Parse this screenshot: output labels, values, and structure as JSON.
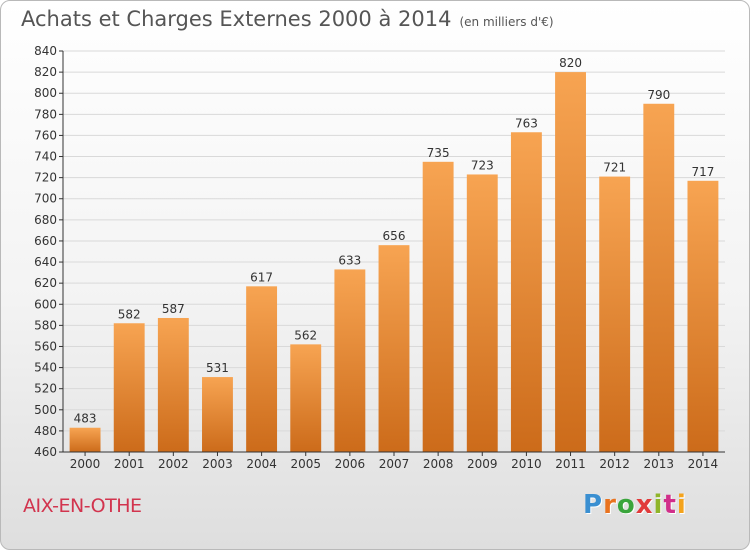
{
  "header": {
    "title": "Achats et Charges Externes 2000 à 2014",
    "subtitle": "(en milliers d'€)"
  },
  "footer": {
    "commune": "AIX-EN-OTHE",
    "logo_text": "Proxiti",
    "logo_colors": [
      "#3a8fd1",
      "#e9731f",
      "#3aa53c",
      "#e13a3a",
      "#8fb52a",
      "#d12f8a",
      "#f4a31c"
    ]
  },
  "colors": {
    "bar_light": "#f7a452",
    "bar_dark": "#cc6b1a",
    "axis": "#333333",
    "grid": "#d9d9d9"
  },
  "chart_data": {
    "type": "bar",
    "categories": [
      "2000",
      "2001",
      "2002",
      "2003",
      "2004",
      "2005",
      "2006",
      "2007",
      "2008",
      "2009",
      "2010",
      "2011",
      "2012",
      "2013",
      "2014"
    ],
    "values": [
      483,
      582,
      587,
      531,
      617,
      562,
      633,
      656,
      735,
      723,
      763,
      820,
      721,
      790,
      717
    ],
    "title": "Achats et Charges Externes 2000 à 2014",
    "subtitle": "(en milliers d'€)",
    "ylim": [
      460,
      840
    ],
    "yticks": [
      460,
      480,
      500,
      520,
      540,
      560,
      580,
      600,
      620,
      640,
      660,
      680,
      700,
      720,
      740,
      760,
      780,
      800,
      820,
      840
    ],
    "grid": true,
    "data_labels": true
  }
}
